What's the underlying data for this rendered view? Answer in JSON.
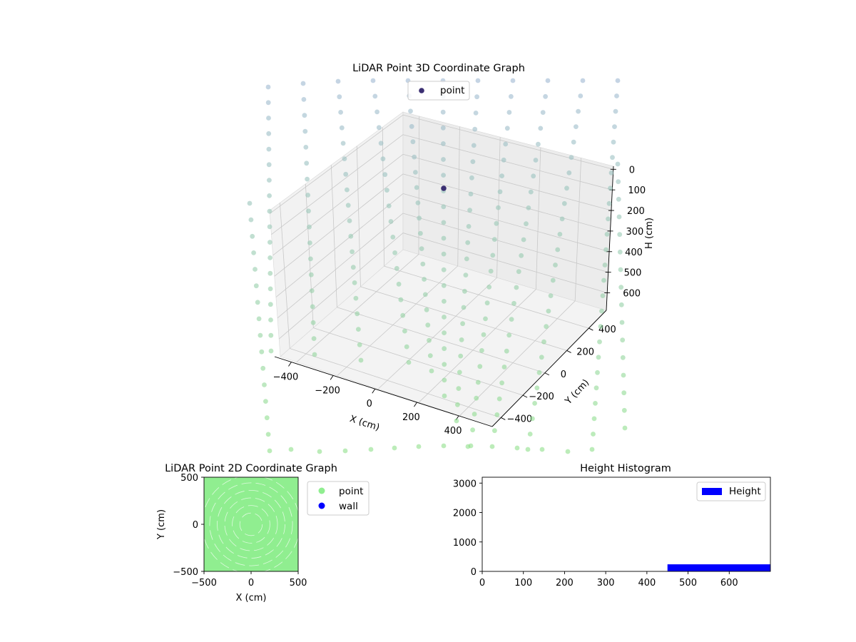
{
  "chart_data": [
    {
      "type": "scatter3d",
      "title": "LiDAR Point 3D Coordinate Graph",
      "xlabel": "X (cm)",
      "ylabel": "Y (cm)",
      "zlabel": "H (cm)",
      "xticks": [
        "−400",
        "−200",
        "0",
        "200",
        "400"
      ],
      "yticks": [
        "−400",
        "−200",
        "0",
        "200",
        "400"
      ],
      "zticks": [
        "0",
        "100",
        "200",
        "300",
        "400",
        "500",
        "600"
      ],
      "zaxis_inverted": true,
      "legend": {
        "entries": [
          "point"
        ],
        "placement": "upper center"
      },
      "series": [
        {
          "name": "point",
          "color_top": "#9fb8d2",
          "color_bottom": "#8fe08a",
          "highlight_color": "#3b2f72"
        }
      ],
      "grid": true
    },
    {
      "type": "scatter",
      "title": "LiDAR Point 2D Coordinate Graph",
      "xlabel": "X (cm)",
      "ylabel": "Y (cm)",
      "xlim": [
        -500,
        500
      ],
      "ylim": [
        -500,
        500
      ],
      "xticks": [
        "−500",
        "0",
        "500"
      ],
      "yticks": [
        "−500",
        "0",
        "500"
      ],
      "legend": {
        "entries": [
          "point",
          "wall"
        ],
        "placement": "outside upper right"
      },
      "series": [
        {
          "name": "point",
          "color": "#90ee90"
        },
        {
          "name": "wall",
          "color": "#0000ff"
        }
      ]
    },
    {
      "type": "bar",
      "title": "Height Histogram",
      "xlim": [
        0,
        700
      ],
      "ylim": [
        0,
        3200
      ],
      "xticks": [
        0,
        100,
        200,
        300,
        400,
        500,
        600
      ],
      "yticks": [
        0,
        1000,
        2000,
        3000
      ],
      "bins": [
        {
          "start": 450,
          "end": 700,
          "count": 240
        }
      ],
      "legend": {
        "entries": [
          "Height"
        ],
        "placement": "upper right"
      },
      "series": [
        {
          "name": "Height",
          "color": "#0000ff"
        }
      ]
    }
  ]
}
